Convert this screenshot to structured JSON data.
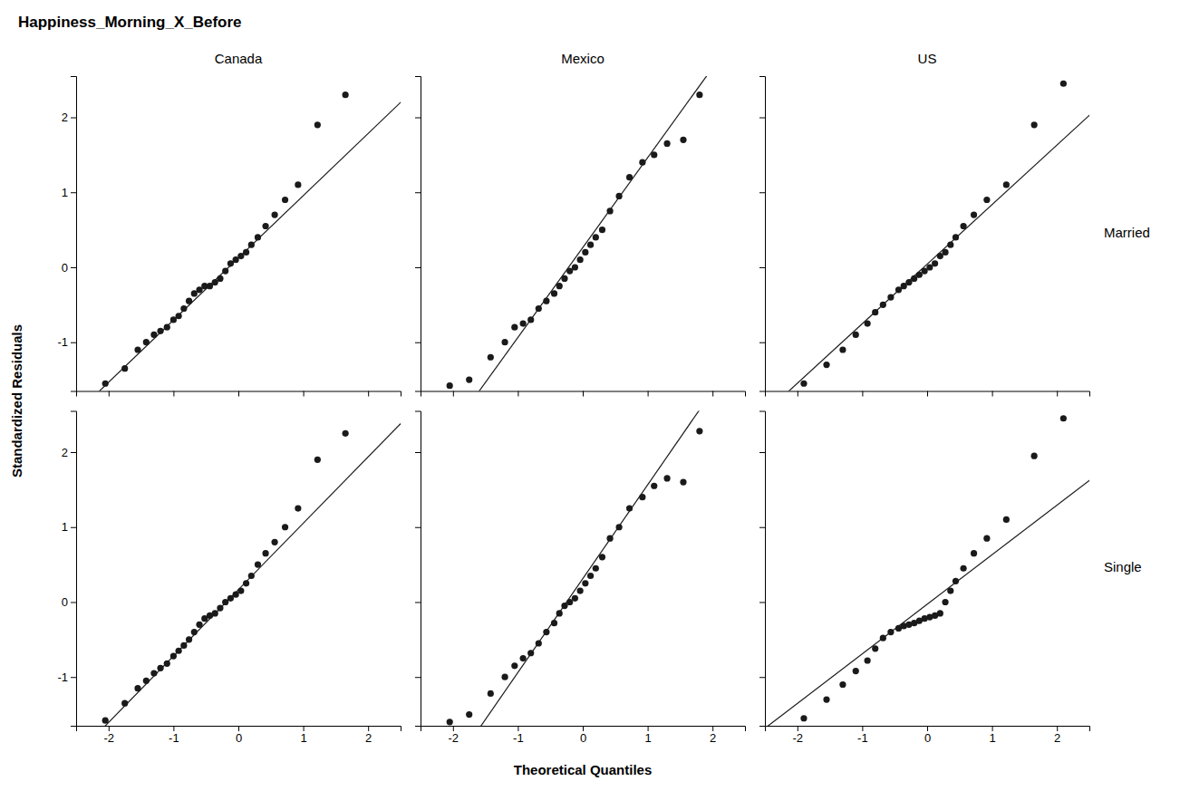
{
  "chart_data": {
    "type": "scatter",
    "title": "Happiness_Morning_X_Before",
    "x_label": "Theoretical Quantiles",
    "y_label": "Standardized Residuals",
    "columns": [
      "Canada",
      "Mexico",
      "US"
    ],
    "rows": [
      "Married",
      "Single"
    ],
    "xlim": [
      -2.5,
      2.5
    ],
    "ylim": [
      -1.65,
      2.55
    ],
    "xticks": [
      -2,
      -1,
      0,
      1,
      2
    ],
    "yticks": [
      -1,
      0,
      1,
      2
    ],
    "panels": [
      {
        "series": [
          {
            "type": "line",
            "color": "#1a1a1a",
            "x": [
              -2.6,
              2.6
            ],
            "values": [
              -2.03168103,
              2.28297414
            ]
          },
          {
            "type": "scatter",
            "color": "#1a1a1a",
            "x": [
              -2.05,
              -1.75,
              -1.55,
              -1.42,
              -1.3,
              -1.2,
              -1.1,
              -1.0,
              -0.92,
              -0.84,
              -0.76,
              -0.68,
              -0.6,
              -0.52,
              -0.44,
              -0.36,
              -0.28,
              -0.2,
              -0.12,
              -0.04,
              0.04,
              0.12,
              0.2,
              0.3,
              0.42,
              0.56,
              0.72,
              0.92,
              1.22,
              1.65
            ],
            "values": [
              -1.55,
              -1.35,
              -1.1,
              -1.0,
              -0.9,
              -0.85,
              -0.8,
              -0.7,
              -0.65,
              -0.55,
              -0.45,
              -0.35,
              -0.3,
              -0.25,
              -0.25,
              -0.2,
              -0.15,
              -0.05,
              0.05,
              0.1,
              0.15,
              0.2,
              0.3,
              0.4,
              0.55,
              0.7,
              0.9,
              1.1,
              1.9,
              2.3
            ]
          }
        ]
      },
      {
        "series": [
          {
            "type": "line",
            "color": "#1a1a1a",
            "x": [
              -2.6,
              2.6
            ],
            "values": [
              -2.85548781,
              3.38028455
            ]
          },
          {
            "type": "scatter",
            "color": "#1a1a1a",
            "x": [
              -2.05,
              -1.75,
              -1.42,
              -1.2,
              -1.05,
              -0.92,
              -0.8,
              -0.68,
              -0.56,
              -0.44,
              -0.36,
              -0.28,
              -0.2,
              -0.12,
              -0.04,
              0.04,
              0.12,
              0.2,
              0.3,
              0.42,
              0.56,
              0.72,
              0.92,
              1.1,
              1.3,
              1.55,
              1.8
            ],
            "values": [
              -1.58,
              -1.5,
              -1.2,
              -1.0,
              -0.8,
              -0.75,
              -0.7,
              -0.55,
              -0.45,
              -0.35,
              -0.25,
              -0.15,
              -0.05,
              0.0,
              0.1,
              0.2,
              0.3,
              0.4,
              0.5,
              0.75,
              0.95,
              1.2,
              1.4,
              1.5,
              1.65,
              1.7,
              2.3
            ]
          }
        ]
      },
      {
        "series": [
          {
            "type": "line",
            "color": "#1a1a1a",
            "x": [
              -2.6,
              2.6
            ],
            "values": [
              -2.02406542,
              2.1067757
            ]
          },
          {
            "type": "scatter",
            "color": "#1a1a1a",
            "x": [
              -1.9,
              -1.55,
              -1.3,
              -1.1,
              -0.92,
              -0.8,
              -0.68,
              -0.56,
              -0.44,
              -0.36,
              -0.28,
              -0.2,
              -0.12,
              -0.04,
              0.04,
              0.12,
              0.2,
              0.28,
              0.36,
              0.44,
              0.56,
              0.72,
              0.92,
              1.22,
              1.65,
              2.1
            ],
            "values": [
              -1.55,
              -1.3,
              -1.1,
              -0.9,
              -0.75,
              -0.6,
              -0.5,
              -0.4,
              -0.3,
              -0.25,
              -0.2,
              -0.15,
              -0.1,
              -0.05,
              0.0,
              0.05,
              0.15,
              0.2,
              0.3,
              0.4,
              0.55,
              0.7,
              0.9,
              1.1,
              1.9,
              2.45
            ]
          }
        ]
      },
      {
        "series": [
          {
            "type": "line",
            "color": "#1a1a1a",
            "x": [
              -2.6,
              2.6
            ],
            "values": [
              -2.1374569,
              2.46857758
            ]
          },
          {
            "type": "scatter",
            "color": "#1a1a1a",
            "x": [
              -2.05,
              -1.75,
              -1.55,
              -1.42,
              -1.3,
              -1.2,
              -1.1,
              -1.0,
              -0.92,
              -0.84,
              -0.76,
              -0.68,
              -0.6,
              -0.52,
              -0.44,
              -0.36,
              -0.28,
              -0.2,
              -0.12,
              -0.04,
              0.04,
              0.12,
              0.2,
              0.3,
              0.42,
              0.56,
              0.72,
              0.92,
              1.22,
              1.65
            ],
            "values": [
              -1.58,
              -1.35,
              -1.15,
              -1.05,
              -0.95,
              -0.88,
              -0.82,
              -0.72,
              -0.65,
              -0.58,
              -0.5,
              -0.4,
              -0.3,
              -0.22,
              -0.18,
              -0.15,
              -0.08,
              0.0,
              0.05,
              0.1,
              0.15,
              0.25,
              0.35,
              0.5,
              0.65,
              0.8,
              1.0,
              1.25,
              1.9,
              2.25
            ]
          }
        ]
      },
      {
        "series": [
          {
            "type": "line",
            "color": "#1a1a1a",
            "x": [
              -2.6,
              2.6
            ],
            "values": [
              -2.94378048,
              3.56678862
            ]
          },
          {
            "type": "scatter",
            "color": "#1a1a1a",
            "x": [
              -2.05,
              -1.75,
              -1.42,
              -1.2,
              -1.05,
              -0.92,
              -0.8,
              -0.68,
              -0.56,
              -0.44,
              -0.36,
              -0.28,
              -0.2,
              -0.12,
              -0.04,
              0.04,
              0.12,
              0.2,
              0.3,
              0.42,
              0.56,
              0.72,
              0.92,
              1.1,
              1.3,
              1.55,
              1.8
            ],
            "values": [
              -1.6,
              -1.5,
              -1.22,
              -1.0,
              -0.85,
              -0.75,
              -0.68,
              -0.55,
              -0.4,
              -0.28,
              -0.15,
              -0.05,
              0.0,
              0.05,
              0.15,
              0.25,
              0.35,
              0.45,
              0.6,
              0.85,
              1.0,
              1.25,
              1.4,
              1.55,
              1.65,
              1.6,
              2.28
            ]
          }
        ]
      },
      {
        "series": [
          {
            "type": "line",
            "color": "#1a1a1a",
            "x": [
              -2.6,
              2.6
            ],
            "values": [
              -1.74936915,
              1.68894859
            ]
          },
          {
            "type": "scatter",
            "color": "#1a1a1a",
            "x": [
              -1.9,
              -1.55,
              -1.3,
              -1.1,
              -0.92,
              -0.8,
              -0.68,
              -0.56,
              -0.44,
              -0.36,
              -0.28,
              -0.2,
              -0.12,
              -0.04,
              0.04,
              0.12,
              0.2,
              0.28,
              0.36,
              0.44,
              0.56,
              0.72,
              0.92,
              1.22,
              1.65,
              2.1
            ],
            "values": [
              -1.55,
              -1.3,
              -1.1,
              -0.92,
              -0.78,
              -0.62,
              -0.48,
              -0.4,
              -0.35,
              -0.32,
              -0.3,
              -0.28,
              -0.25,
              -0.22,
              -0.2,
              -0.18,
              -0.15,
              0.0,
              0.15,
              0.28,
              0.45,
              0.65,
              0.85,
              1.1,
              1.95,
              2.45
            ]
          }
        ]
      }
    ]
  }
}
